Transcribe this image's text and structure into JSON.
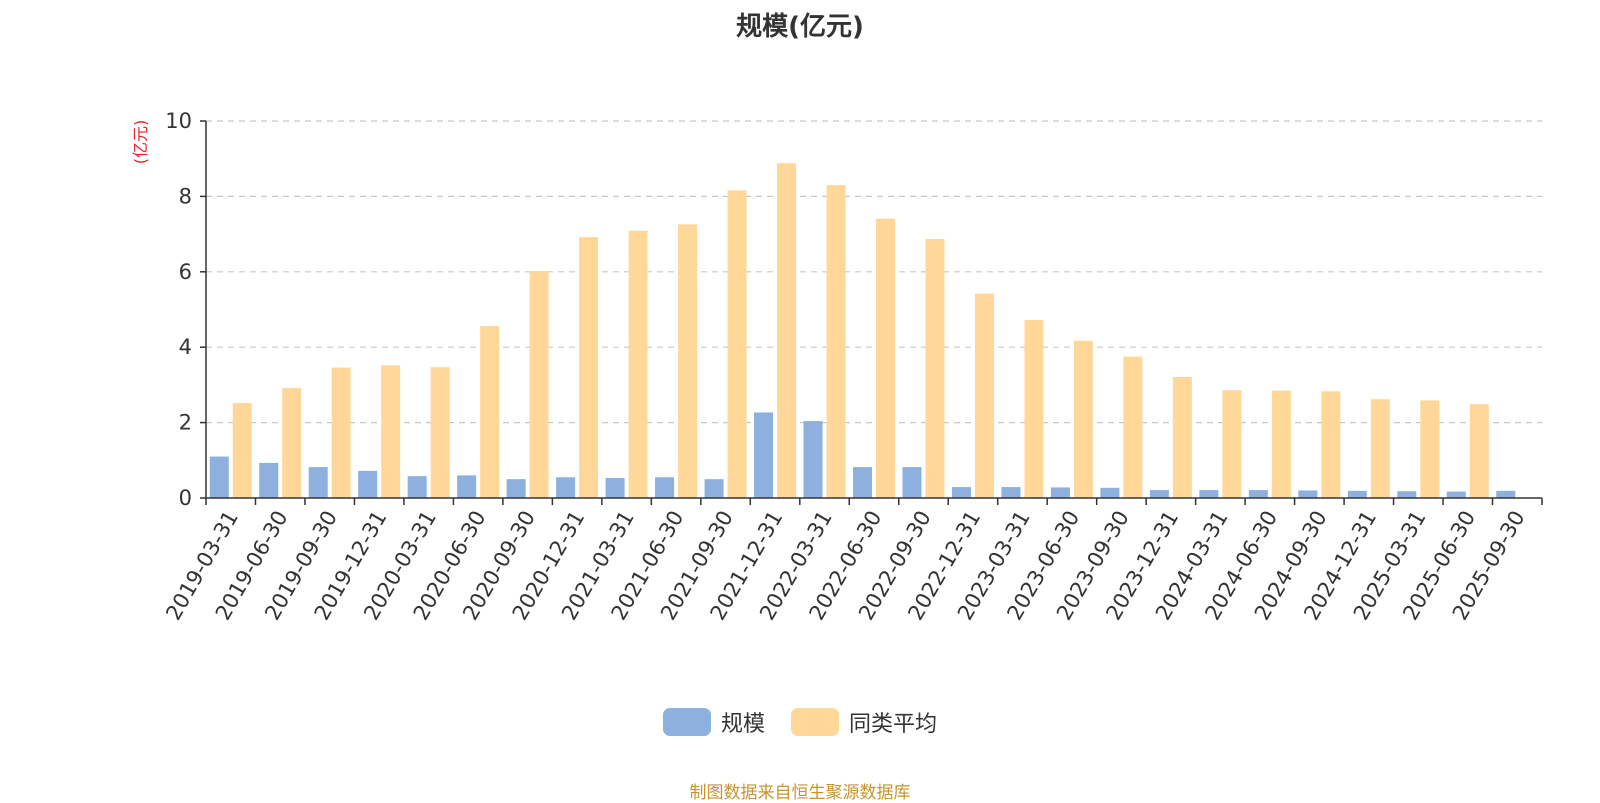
{
  "title": "规模(亿元)",
  "source_note": "制图数据来自恒生聚源数据库",
  "colors": {
    "scale": "#8eb0de",
    "peer_avg": "#ffd899",
    "axis_unit": "#e8202a",
    "grid": "#c8c8c8",
    "axis": "#333333"
  },
  "chart_data": {
    "type": "bar",
    "title": "规模(亿元)",
    "ylabel": "(亿元)",
    "ylim": [
      0,
      10
    ],
    "yticks": [
      "0",
      "2",
      "4",
      "6",
      "8",
      "10"
    ],
    "grid": true,
    "legend_position": "bottom-center",
    "categories": [
      "2019-03-31",
      "2019-06-30",
      "2019-09-30",
      "2019-12-31",
      "2020-03-31",
      "2020-06-30",
      "2020-09-30",
      "2020-12-31",
      "2021-03-31",
      "2021-06-30",
      "2021-09-30",
      "2021-12-31",
      "2022-03-31",
      "2022-06-30",
      "2022-09-30",
      "2022-12-31",
      "2023-03-31",
      "2023-06-30",
      "2023-09-30",
      "2023-12-31",
      "2024-03-31",
      "2024-06-30",
      "2024-09-30",
      "2024-12-31",
      "2025-03-31",
      "2025-06-30",
      "2025-09-30"
    ],
    "series": [
      {
        "name": "规模",
        "color": "#8eb0de",
        "values": [
          1.1,
          0.93,
          0.82,
          0.72,
          0.58,
          0.6,
          0.5,
          0.55,
          0.53,
          0.55,
          0.5,
          2.27,
          2.04,
          0.82,
          0.82,
          0.29,
          0.29,
          0.28,
          0.27,
          0.21,
          0.21,
          0.21,
          0.2,
          0.19,
          0.18,
          0.17,
          0.19
        ]
      },
      {
        "name": "同类平均",
        "color": "#ffd899",
        "values": [
          2.52,
          2.92,
          3.46,
          3.52,
          3.47,
          4.56,
          6.02,
          6.92,
          7.09,
          7.26,
          8.16,
          8.88,
          8.3,
          7.41,
          6.87,
          5.42,
          4.72,
          4.17,
          3.75,
          3.21,
          2.86,
          2.85,
          2.83,
          2.62,
          2.59,
          2.49,
          null
        ]
      }
    ]
  }
}
